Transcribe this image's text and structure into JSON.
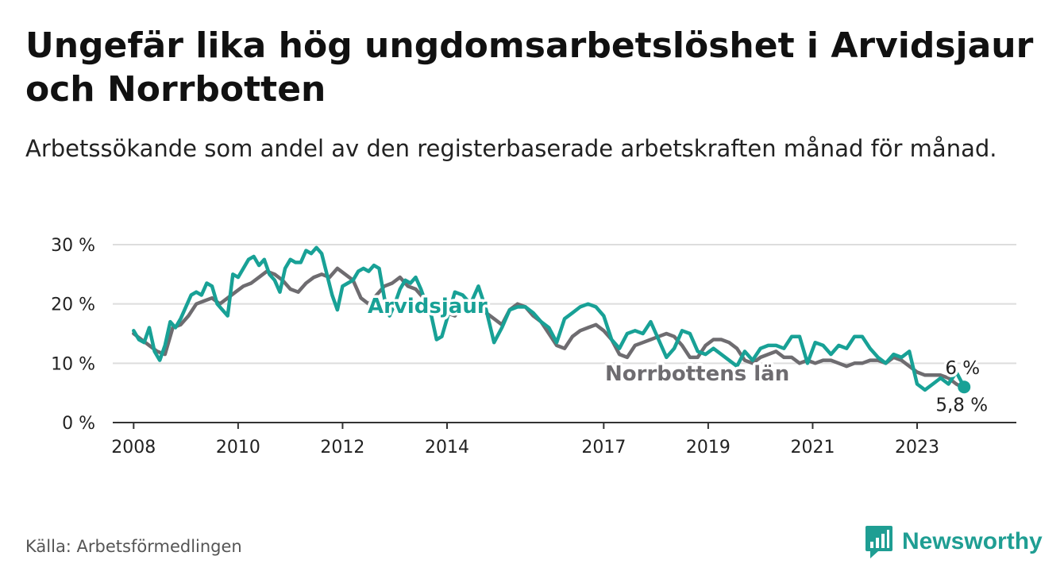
{
  "header": {
    "title": "Ungefär lika hög ungdomsarbetslöshet i Arvidsjaur och Norrbotten",
    "subtitle": "Arbetssökande som andel av den registerbaserade arbetskraften månad för månad."
  },
  "footer": {
    "source": "Källa: Arbetsförmedlingen",
    "brand": "Newsworthy"
  },
  "colors": {
    "arvidsjaur": "#18a196",
    "norrbotten": "#6e6c70",
    "grid": "#dddddd",
    "axis": "#333333",
    "brand": "#1f9e93"
  },
  "chart_data": {
    "type": "line",
    "title": "Ungefär lika hög ungdomsarbetslöshet i Arvidsjaur och Norrbotten",
    "xlabel": "",
    "ylabel": "",
    "x_unit": "year",
    "xlim": [
      2007.6,
      2024.9
    ],
    "ylim": [
      0,
      30
    ],
    "x_ticks": [
      2008,
      2010,
      2012,
      2014,
      2017,
      2019,
      2021,
      2023
    ],
    "x_tick_labels": [
      "2008",
      "2010",
      "2012",
      "2014",
      "2017",
      "2019",
      "2021",
      "2023"
    ],
    "y_ticks": [
      0,
      10,
      20,
      30
    ],
    "y_tick_labels": [
      "0 %",
      "10 %",
      "20 %",
      "30 %"
    ],
    "grid": true,
    "series": [
      {
        "name": "Norrbottens län",
        "color_key": "norrbotten",
        "x": [
          2008.0,
          2008.15,
          2008.3,
          2008.45,
          2008.6,
          2008.75,
          2008.9,
          2009.05,
          2009.2,
          2009.35,
          2009.5,
          2009.65,
          2009.8,
          2009.95,
          2010.1,
          2010.25,
          2010.4,
          2010.55,
          2010.7,
          2010.85,
          2011.0,
          2011.15,
          2011.3,
          2011.45,
          2011.6,
          2011.75,
          2011.9,
          2012.05,
          2012.2,
          2012.35,
          2012.5,
          2012.65,
          2012.8,
          2012.95,
          2013.1,
          2013.25,
          2013.4,
          2013.55,
          2013.7,
          2013.85,
          2014.0,
          2014.15,
          2014.3,
          2014.45,
          2014.6,
          2014.75,
          2014.9,
          2015.05,
          2015.2,
          2015.35,
          2015.5,
          2015.65,
          2015.8,
          2015.95,
          2016.1,
          2016.25,
          2016.4,
          2016.55,
          2016.7,
          2016.85,
          2017.0,
          2017.15,
          2017.3,
          2017.45,
          2017.6,
          2017.75,
          2017.9,
          2018.05,
          2018.2,
          2018.35,
          2018.5,
          2018.65,
          2018.8,
          2018.95,
          2019.1,
          2019.25,
          2019.4,
          2019.55,
          2019.7,
          2019.85,
          2020.0,
          2020.15,
          2020.3,
          2020.45,
          2020.6,
          2020.75,
          2020.9,
          2021.05,
          2021.2,
          2021.35,
          2021.5,
          2021.65,
          2021.8,
          2021.95,
          2022.1,
          2022.25,
          2022.4,
          2022.55,
          2022.7,
          2022.85,
          2023.0,
          2023.15,
          2023.3,
          2023.45,
          2023.6,
          2023.75,
          2023.9
        ],
        "values": [
          15.0,
          14.0,
          13.0,
          12.0,
          11.5,
          16.0,
          16.5,
          18.0,
          20.0,
          20.5,
          21.0,
          20.0,
          21.0,
          22.0,
          23.0,
          23.5,
          24.5,
          25.5,
          25.0,
          24.0,
          22.5,
          22.0,
          23.5,
          24.5,
          25.0,
          24.5,
          26.0,
          25.0,
          24.0,
          21.0,
          20.0,
          21.5,
          23.0,
          23.5,
          24.5,
          23.0,
          22.5,
          21.0,
          20.0,
          19.0,
          18.5,
          18.0,
          19.5,
          20.0,
          19.0,
          18.5,
          17.5,
          16.5,
          19.0,
          20.0,
          19.5,
          18.0,
          17.0,
          15.0,
          13.0,
          12.5,
          14.5,
          15.5,
          16.0,
          16.5,
          15.5,
          14.0,
          11.5,
          11.0,
          13.0,
          13.5,
          14.0,
          14.5,
          15.0,
          14.5,
          13.0,
          11.0,
          11.0,
          13.0,
          14.0,
          14.0,
          13.5,
          12.5,
          10.5,
          10.0,
          11.0,
          11.5,
          12.0,
          11.0,
          11.0,
          10.0,
          10.5,
          10.0,
          10.5,
          10.5,
          10.0,
          9.5,
          10.0,
          10.0,
          10.5,
          10.5,
          10.0,
          11.0,
          10.5,
          9.5,
          8.5,
          8.0,
          8.0,
          8.0,
          7.5,
          6.5,
          5.8
        ]
      },
      {
        "name": "Arvidsjaur",
        "color_key": "arvidsjaur",
        "x": [
          2008.0,
          2008.1,
          2008.2,
          2008.3,
          2008.4,
          2008.5,
          2008.6,
          2008.7,
          2008.8,
          2008.9,
          2009.0,
          2009.1,
          2009.2,
          2009.3,
          2009.4,
          2009.5,
          2009.6,
          2009.7,
          2009.8,
          2009.9,
          2010.0,
          2010.1,
          2010.2,
          2010.3,
          2010.4,
          2010.5,
          2010.6,
          2010.7,
          2010.8,
          2010.9,
          2011.0,
          2011.1,
          2011.2,
          2011.3,
          2011.4,
          2011.5,
          2011.6,
          2011.7,
          2011.8,
          2011.9,
          2012.0,
          2012.1,
          2012.2,
          2012.3,
          2012.4,
          2012.5,
          2012.6,
          2012.7,
          2012.8,
          2012.9,
          2013.0,
          2013.1,
          2013.2,
          2013.3,
          2013.4,
          2013.5,
          2013.6,
          2013.7,
          2013.8,
          2013.9,
          2014.0,
          2014.15,
          2014.3,
          2014.45,
          2014.6,
          2014.75,
          2014.9,
          2015.05,
          2015.2,
          2015.35,
          2015.5,
          2015.65,
          2015.8,
          2015.95,
          2016.1,
          2016.25,
          2016.4,
          2016.55,
          2016.7,
          2016.85,
          2017.0,
          2017.15,
          2017.3,
          2017.45,
          2017.6,
          2017.75,
          2017.9,
          2018.05,
          2018.2,
          2018.35,
          2018.5,
          2018.65,
          2018.8,
          2018.95,
          2019.1,
          2019.25,
          2019.4,
          2019.55,
          2019.7,
          2019.85,
          2020.0,
          2020.15,
          2020.3,
          2020.45,
          2020.6,
          2020.75,
          2020.9,
          2021.05,
          2021.2,
          2021.35,
          2021.5,
          2021.65,
          2021.8,
          2021.95,
          2022.1,
          2022.25,
          2022.4,
          2022.55,
          2022.7,
          2022.85,
          2023.0,
          2023.15,
          2023.3,
          2023.45,
          2023.6,
          2023.75,
          2023.9
        ],
        "values": [
          15.5,
          14.0,
          13.5,
          16.0,
          12.0,
          10.5,
          13.0,
          17.0,
          16.0,
          17.5,
          19.5,
          21.5,
          22.0,
          21.5,
          23.5,
          23.0,
          20.0,
          19.0,
          18.0,
          25.0,
          24.5,
          26.0,
          27.5,
          28.0,
          26.5,
          27.5,
          25.0,
          24.0,
          22.0,
          26.0,
          27.5,
          27.0,
          27.0,
          29.0,
          28.5,
          29.5,
          28.5,
          25.0,
          21.5,
          19.0,
          23.0,
          23.5,
          24.0,
          25.5,
          26.0,
          25.5,
          26.5,
          26.0,
          21.0,
          18.0,
          20.0,
          22.5,
          24.0,
          23.5,
          24.5,
          22.5,
          20.0,
          18.0,
          14.0,
          14.5,
          17.5,
          22.0,
          21.5,
          20.0,
          23.0,
          19.0,
          13.5,
          16.0,
          19.0,
          19.5,
          19.5,
          18.5,
          17.0,
          16.0,
          13.5,
          17.5,
          18.5,
          19.5,
          20.0,
          19.5,
          18.0,
          14.0,
          12.5,
          15.0,
          15.5,
          15.0,
          17.0,
          14.0,
          11.0,
          12.5,
          15.5,
          15.0,
          12.0,
          11.5,
          12.5,
          11.5,
          10.5,
          9.5,
          12.0,
          10.5,
          12.5,
          13.0,
          13.0,
          12.5,
          14.5,
          14.5,
          10.0,
          13.5,
          13.0,
          11.5,
          13.0,
          12.5,
          14.5,
          14.5,
          12.5,
          11.0,
          10.0,
          11.5,
          11.0,
          12.0,
          6.5,
          5.5,
          6.5,
          7.5,
          6.5,
          8.5,
          6.0
        ]
      }
    ],
    "annotations": [
      {
        "text": "Arvidsjaur",
        "series": "Arvidsjaur"
      },
      {
        "text": "Norrbottens län",
        "series": "Norrbottens län"
      },
      {
        "text": "6 %",
        "series": "Arvidsjaur",
        "type": "end-value"
      },
      {
        "text": "5,8 %",
        "series": "Norrbottens län",
        "type": "end-value"
      }
    ]
  }
}
